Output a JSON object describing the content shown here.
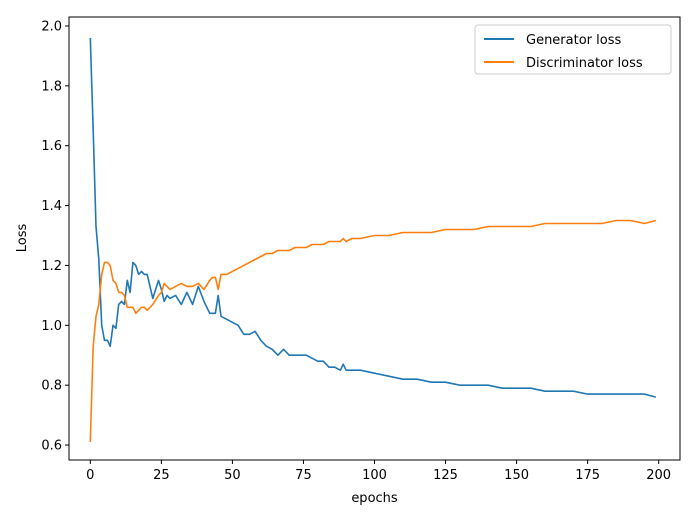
{
  "chart_data": {
    "type": "line",
    "xlabel": "epochs",
    "ylabel": "Loss",
    "xlim": [
      -7.5,
      207.5
    ],
    "ylim": [
      0.55,
      2.03
    ],
    "xticks": [
      0,
      25,
      50,
      75,
      100,
      125,
      150,
      175,
      200
    ],
    "yticks": [
      0.6,
      0.8,
      1.0,
      1.2,
      1.4,
      1.6,
      1.8,
      2.0
    ],
    "ytick_labels": [
      "0.6",
      "0.8",
      "1.0",
      "1.2",
      "1.4",
      "1.6",
      "1.8",
      "2.0"
    ],
    "xtick_labels": [
      "0",
      "25",
      "50",
      "75",
      "100",
      "125",
      "150",
      "175",
      "200"
    ],
    "grid": false,
    "legend_position": "top-right",
    "series": [
      {
        "name": "Generator loss",
        "color": "#1f77b4",
        "x": [
          0,
          1,
          2,
          3,
          4,
          5,
          6,
          7,
          8,
          9,
          10,
          11,
          12,
          13,
          14,
          15,
          16,
          17,
          18,
          19,
          20,
          22,
          24,
          25,
          26,
          27,
          28,
          30,
          32,
          34,
          36,
          38,
          40,
          42,
          43,
          44,
          45,
          46,
          48,
          50,
          52,
          54,
          56,
          58,
          60,
          62,
          64,
          66,
          68,
          70,
          72,
          74,
          76,
          78,
          80,
          82,
          84,
          86,
          88,
          89,
          90,
          92,
          95,
          100,
          105,
          110,
          115,
          120,
          125,
          130,
          135,
          140,
          145,
          150,
          155,
          160,
          165,
          170,
          175,
          180,
          185,
          190,
          195,
          199
        ],
        "y": [
          1.96,
          1.65,
          1.33,
          1.22,
          1.0,
          0.95,
          0.95,
          0.93,
          1.0,
          0.99,
          1.07,
          1.08,
          1.07,
          1.15,
          1.11,
          1.21,
          1.2,
          1.17,
          1.18,
          1.17,
          1.17,
          1.09,
          1.15,
          1.12,
          1.08,
          1.1,
          1.09,
          1.1,
          1.07,
          1.11,
          1.07,
          1.13,
          1.08,
          1.04,
          1.04,
          1.04,
          1.1,
          1.03,
          1.02,
          1.01,
          1.0,
          0.97,
          0.97,
          0.98,
          0.95,
          0.93,
          0.92,
          0.9,
          0.92,
          0.9,
          0.9,
          0.9,
          0.9,
          0.89,
          0.88,
          0.88,
          0.86,
          0.86,
          0.85,
          0.87,
          0.85,
          0.85,
          0.85,
          0.84,
          0.83,
          0.82,
          0.82,
          0.81,
          0.81,
          0.8,
          0.8,
          0.8,
          0.79,
          0.79,
          0.79,
          0.78,
          0.78,
          0.78,
          0.77,
          0.77,
          0.77,
          0.77,
          0.77,
          0.76
        ]
      },
      {
        "name": "Discriminator loss",
        "color": "#ff7f0e",
        "x": [
          0,
          1,
          2,
          3,
          4,
          5,
          6,
          7,
          8,
          9,
          10,
          11,
          12,
          13,
          14,
          15,
          16,
          17,
          18,
          19,
          20,
          22,
          24,
          25,
          26,
          27,
          28,
          30,
          32,
          34,
          36,
          38,
          40,
          42,
          43,
          44,
          45,
          46,
          48,
          50,
          52,
          54,
          56,
          58,
          60,
          62,
          64,
          66,
          68,
          70,
          72,
          74,
          76,
          78,
          80,
          82,
          84,
          86,
          88,
          89,
          90,
          92,
          95,
          100,
          105,
          110,
          115,
          120,
          125,
          130,
          135,
          140,
          145,
          150,
          155,
          160,
          165,
          170,
          175,
          180,
          185,
          190,
          195,
          199
        ],
        "y": [
          0.61,
          0.93,
          1.03,
          1.07,
          1.17,
          1.21,
          1.21,
          1.2,
          1.15,
          1.14,
          1.11,
          1.11,
          1.1,
          1.06,
          1.06,
          1.06,
          1.04,
          1.05,
          1.06,
          1.06,
          1.05,
          1.07,
          1.1,
          1.11,
          1.14,
          1.13,
          1.12,
          1.13,
          1.14,
          1.13,
          1.13,
          1.14,
          1.12,
          1.15,
          1.16,
          1.16,
          1.12,
          1.17,
          1.17,
          1.18,
          1.19,
          1.2,
          1.21,
          1.22,
          1.23,
          1.24,
          1.24,
          1.25,
          1.25,
          1.25,
          1.26,
          1.26,
          1.26,
          1.27,
          1.27,
          1.27,
          1.28,
          1.28,
          1.28,
          1.29,
          1.28,
          1.29,
          1.29,
          1.3,
          1.3,
          1.31,
          1.31,
          1.31,
          1.32,
          1.32,
          1.32,
          1.33,
          1.33,
          1.33,
          1.33,
          1.34,
          1.34,
          1.34,
          1.34,
          1.34,
          1.35,
          1.35,
          1.34,
          1.35
        ]
      }
    ]
  }
}
